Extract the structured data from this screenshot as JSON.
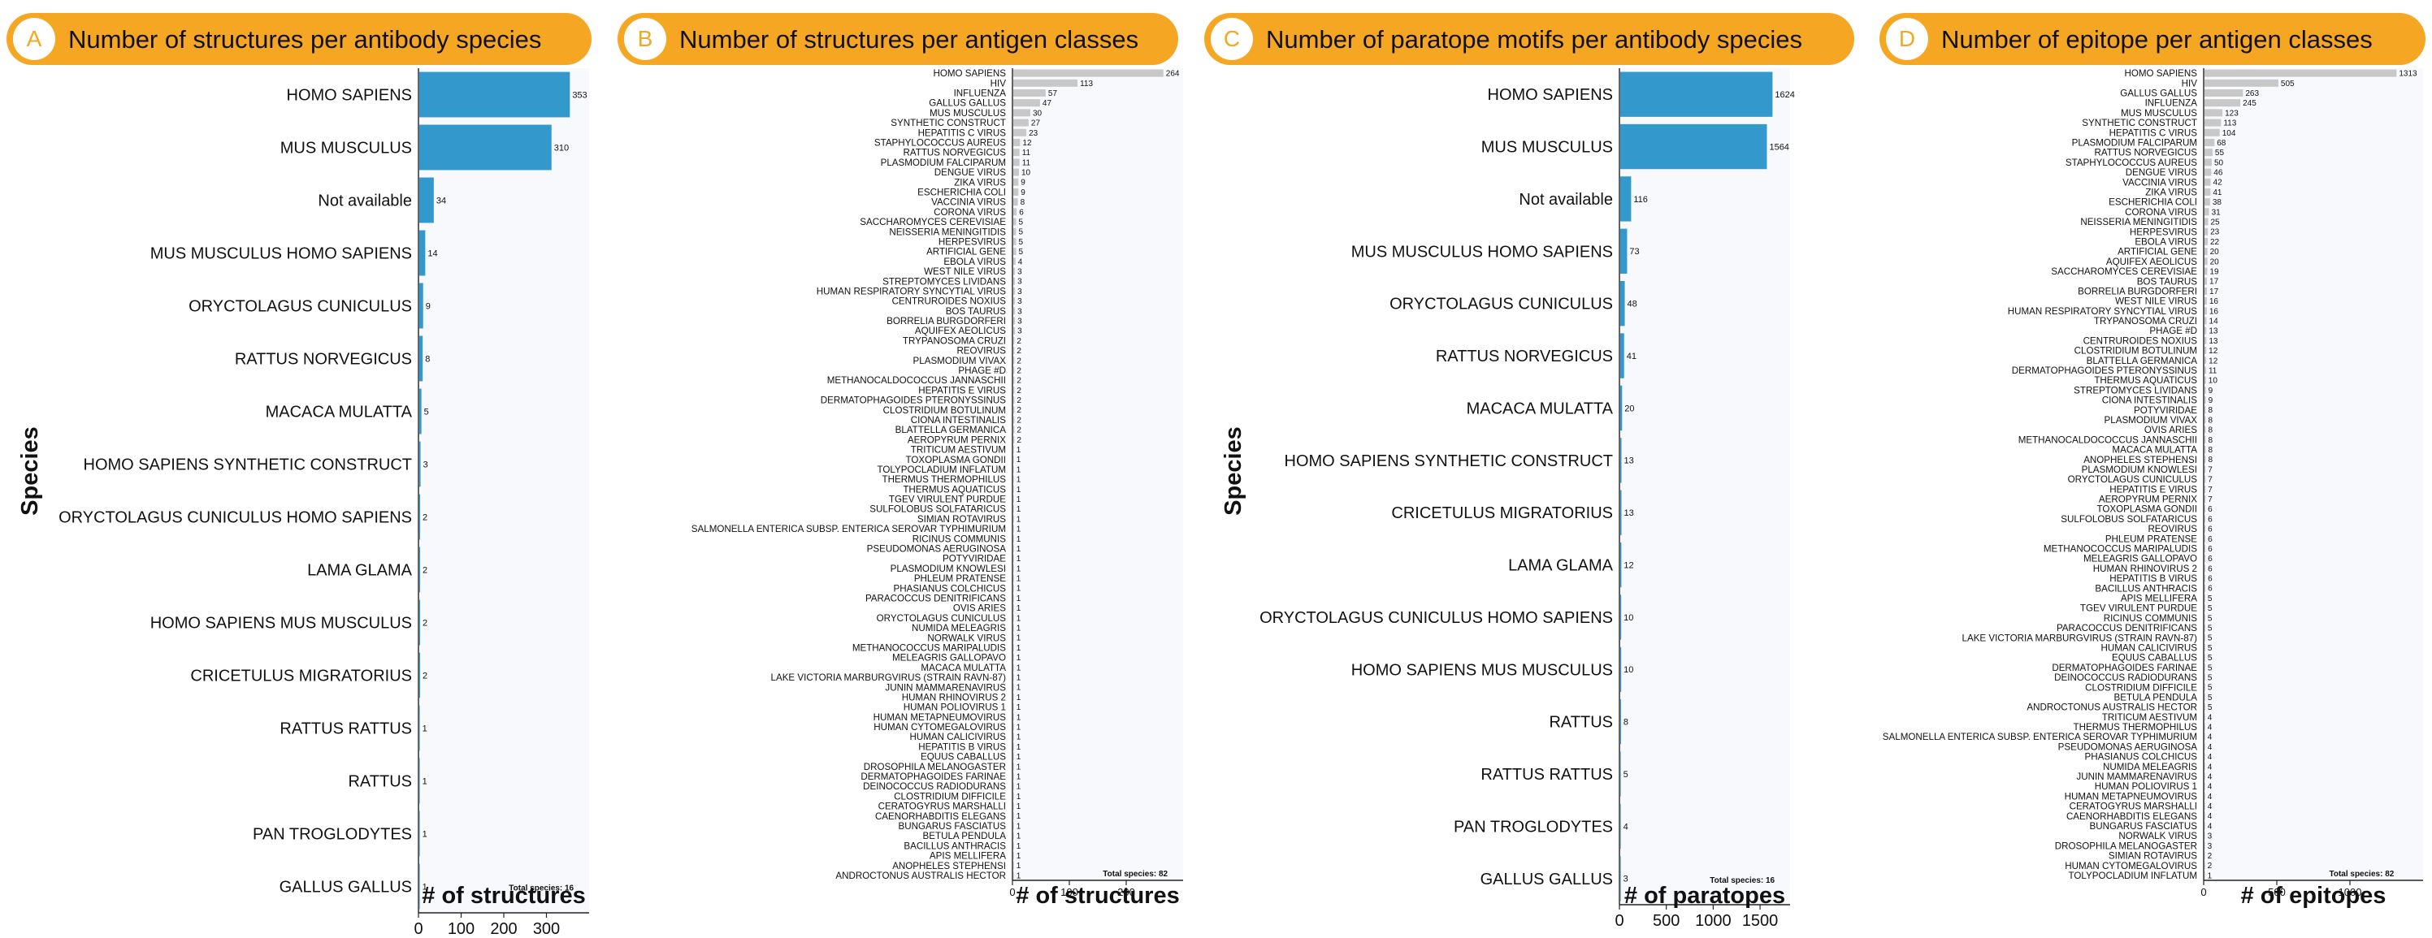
{
  "colors": {
    "header_bg": "#F5A623",
    "blue": "#3399CC",
    "gray": "#C8C8C8",
    "plot_bg": "#F7F9FC",
    "letter_fg": "#F5A623"
  },
  "panels": [
    {
      "letter": "A",
      "title": "Number of structures per antibody species",
      "ylabel": "Species",
      "xlabel": "# of structures",
      "note": "Total species: 16",
      "chart_data": {
        "type": "bar",
        "orientation": "horizontal",
        "color": "blue",
        "xlim": [
          0,
          400
        ],
        "xticks": [
          0,
          100,
          200,
          300
        ],
        "categories": [
          "HOMO SAPIENS",
          "MUS MUSCULUS",
          "Not available",
          "MUS MUSCULUS HOMO SAPIENS",
          "ORYCTOLAGUS CUNICULUS",
          "RATTUS NORVEGICUS",
          "MACACA MULATTA",
          "HOMO SAPIENS SYNTHETIC CONSTRUCT",
          "ORYCTOLAGUS CUNICULUS HOMO SAPIENS",
          "LAMA GLAMA",
          "HOMO SAPIENS MUS MUSCULUS",
          "CRICETULUS MIGRATORIUS",
          "RATTUS RATTUS",
          "RATTUS",
          "PAN TROGLODYTES",
          "GALLUS GALLUS"
        ],
        "values": [
          353,
          310,
          34,
          14,
          9,
          8,
          5,
          3,
          2,
          2,
          2,
          2,
          1,
          1,
          1,
          1
        ]
      }
    },
    {
      "letter": "B",
      "title": "Number of structures per antigen classes",
      "ylabel": "",
      "xlabel": "# of structures",
      "note": "Total species: 82",
      "chart_data": {
        "type": "bar",
        "orientation": "horizontal",
        "color": "gray",
        "xlim": [
          0,
          300
        ],
        "xticks": [
          0,
          100,
          200
        ],
        "categories": [
          "HOMO SAPIENS",
          "HIV",
          "INFLUENZA",
          "GALLUS GALLUS",
          "MUS MUSCULUS",
          "SYNTHETIC CONSTRUCT",
          "HEPATITIS C VIRUS",
          "STAPHYLOCOCCUS AUREUS",
          "RATTUS NORVEGICUS",
          "PLASMODIUM FALCIPARUM",
          "DENGUE VIRUS",
          "ZIKA VIRUS",
          "ESCHERICHIA COLI",
          "VACCINIA VIRUS",
          "CORONA VIRUS",
          "SACCHAROMYCES CEREVISIAE",
          "NEISSERIA MENINGITIDIS",
          "HERPESVIRUS",
          "ARTIFICIAL GENE",
          "EBOLA VIRUS",
          "WEST NILE VIRUS",
          "STREPTOMYCES LIVIDANS",
          "HUMAN RESPIRATORY SYNCYTIAL VIRUS",
          "CENTRUROIDES NOXIUS",
          "BOS TAURUS",
          "BORRELIA BURGDORFERI",
          "AQUIFEX AEOLICUS",
          "TRYPANOSOMA CRUZI",
          "REOVIRUS",
          "PLASMODIUM VIVAX",
          "PHAGE #D",
          "METHANOCALDOCOCCUS JANNASCHII",
          "HEPATITIS E VIRUS",
          "DERMATOPHAGOIDES PTERONYSSINUS",
          "CLOSTRIDIUM BOTULINUM",
          "CIONA INTESTINALIS",
          "BLATTELLA GERMANICA",
          "AEROPYRUM PERNIX",
          "TRITICUM AESTIVUM",
          "TOXOPLASMA GONDII",
          "TOLYPOCLADIUM INFLATUM",
          "THERMUS THERMOPHILUS",
          "THERMUS AQUATICUS",
          "TGEV VIRULENT PURDUE",
          "SULFOLOBUS SOLFATARICUS",
          "SIMIAN ROTAVIRUS",
          "SALMONELLA ENTERICA SUBSP. ENTERICA SEROVAR TYPHIMURIUM",
          "RICINUS COMMUNIS",
          "PSEUDOMONAS AERUGINOSA",
          "POTYVIRIDAE",
          "PLASMODIUM KNOWLESI",
          "PHLEUM PRATENSE",
          "PHASIANUS COLCHICUS",
          "PARACOCCUS DENITRIFICANS",
          "OVIS ARIES",
          "ORYCTOLAGUS CUNICULUS",
          "NUMIDA MELEAGRIS",
          "NORWALK VIRUS",
          "METHANOCOCCUS MARIPALUDIS",
          "MELEAGRIS GALLOPAVO",
          "MACACA MULATTA",
          "LAKE VICTORIA MARBURGVIRUS (STRAIN RAVN-87)",
          "JUNIN MAMMARENAVIRUS",
          "HUMAN RHINOVIRUS 2",
          "HUMAN POLIOVIRUS 1",
          "HUMAN METAPNEUMOVIRUS",
          "HUMAN CYTOMEGALOVIRUS",
          "HUMAN CALICIVIRUS",
          "HEPATITIS B VIRUS",
          "EQUUS CABALLUS",
          "DROSOPHILA MELANOGASTER",
          "DERMATOPHAGOIDES FARINAE",
          "DEINOCOCCUS RADIODURANS",
          "CLOSTRIDIUM DIFFICILE",
          "CERATOGYRUS MARSHALLI",
          "CAENORHABDITIS ELEGANS",
          "BUNGARUS FASCIATUS",
          "BETULA PENDULA",
          "BACILLUS ANTHRACIS",
          "APIS MELLIFERA",
          "ANOPHELES STEPHENSI",
          "ANDROCTONUS AUSTRALIS HECTOR"
        ],
        "values": [
          264,
          113,
          57,
          47,
          30,
          27,
          23,
          12,
          11,
          11,
          10,
          9,
          9,
          8,
          6,
          5,
          5,
          5,
          5,
          4,
          3,
          3,
          3,
          3,
          3,
          3,
          3,
          2,
          2,
          2,
          2,
          2,
          2,
          2,
          2,
          2,
          2,
          2,
          1,
          1,
          1,
          1,
          1,
          1,
          1,
          1,
          1,
          1,
          1,
          1,
          1,
          1,
          1,
          1,
          1,
          1,
          1,
          1,
          1,
          1,
          1,
          1,
          1,
          1,
          1,
          1,
          1,
          1,
          1,
          1,
          1,
          1,
          1,
          1,
          1,
          1,
          1,
          1,
          1,
          1,
          1,
          1
        ]
      }
    },
    {
      "letter": "C",
      "title": "Number of paratope motifs per antibody species",
      "ylabel": "Species",
      "xlabel": "# of paratopes",
      "note": "Total species: 16",
      "chart_data": {
        "type": "bar",
        "orientation": "horizontal",
        "color": "blue",
        "xlim": [
          0,
          1820
        ],
        "xticks": [
          0,
          500,
          1000,
          1500
        ],
        "categories": [
          "HOMO SAPIENS",
          "MUS MUSCULUS",
          "Not available",
          "MUS MUSCULUS HOMO SAPIENS",
          "ORYCTOLAGUS CUNICULUS",
          "RATTUS NORVEGICUS",
          "MACACA MULATTA",
          "HOMO SAPIENS SYNTHETIC CONSTRUCT",
          "CRICETULUS MIGRATORIUS",
          "LAMA GLAMA",
          "ORYCTOLAGUS CUNICULUS HOMO SAPIENS",
          "HOMO SAPIENS MUS MUSCULUS",
          "RATTUS",
          "RATTUS RATTUS",
          "PAN TROGLODYTES",
          "GALLUS GALLUS"
        ],
        "values": [
          1624,
          1564,
          116,
          73,
          48,
          41,
          20,
          13,
          13,
          12,
          10,
          10,
          8,
          5,
          4,
          3
        ]
      }
    },
    {
      "letter": "D",
      "title": "Number of epitope per antigen classes",
      "ylabel": "",
      "xlabel": "# of epitopes",
      "note": "Total species: 82",
      "chart_data": {
        "type": "bar",
        "orientation": "horizontal",
        "color": "gray",
        "xlim": [
          0,
          1500
        ],
        "xticks": [
          0,
          500,
          1000
        ],
        "categories": [
          "HOMO SAPIENS",
          "HIV",
          "GALLUS GALLUS",
          "INFLUENZA",
          "MUS MUSCULUS",
          "SYNTHETIC CONSTRUCT",
          "HEPATITIS C VIRUS",
          "PLASMODIUM FALCIPARUM",
          "RATTUS NORVEGICUS",
          "STAPHYLOCOCCUS AUREUS",
          "DENGUE VIRUS",
          "VACCINIA VIRUS",
          "ZIKA VIRUS",
          "ESCHERICHIA COLI",
          "CORONA VIRUS",
          "NEISSERIA MENINGITIDIS",
          "HERPESVIRUS",
          "EBOLA VIRUS",
          "ARTIFICIAL GENE",
          "AQUIFEX AEOLICUS",
          "SACCHAROMYCES CEREVISIAE",
          "BOS TAURUS",
          "BORRELIA BURGDORFERI",
          "WEST NILE VIRUS",
          "HUMAN RESPIRATORY SYNCYTIAL VIRUS",
          "TRYPANOSOMA CRUZI",
          "PHAGE #D",
          "CENTRUROIDES NOXIUS",
          "CLOSTRIDIUM BOTULINUM",
          "BLATTELLA GERMANICA",
          "DERMATOPHAGOIDES PTERONYSSINUS",
          "THERMUS AQUATICUS",
          "STREPTOMYCES LIVIDANS",
          "CIONA INTESTINALIS",
          "POTYVIRIDAE",
          "PLASMODIUM VIVAX",
          "OVIS ARIES",
          "METHANOCALDOCOCCUS JANNASCHII",
          "MACACA MULATTA",
          "ANOPHELES STEPHENSI",
          "PLASMODIUM KNOWLESI",
          "ORYCTOLAGUS CUNICULUS",
          "HEPATITIS E VIRUS",
          "AEROPYRUM PERNIX",
          "TOXOPLASMA GONDII",
          "SULFOLOBUS SOLFATARICUS",
          "REOVIRUS",
          "PHLEUM PRATENSE",
          "METHANOCOCCUS MARIPALUDIS",
          "MELEAGRIS GALLOPAVO",
          "HUMAN RHINOVIRUS 2",
          "HEPATITIS B VIRUS",
          "BACILLUS ANTHRACIS",
          "APIS MELLIFERA",
          "TGEV VIRULENT PURDUE",
          "RICINUS COMMUNIS",
          "PARACOCCUS DENITRIFICANS",
          "LAKE VICTORIA MARBURGVIRUS (STRAIN RAVN-87)",
          "HUMAN CALICIVIRUS",
          "EQUUS CABALLUS",
          "DERMATOPHAGOIDES FARINAE",
          "DEINOCOCCUS RADIODURANS",
          "CLOSTRIDIUM DIFFICILE",
          "BETULA PENDULA",
          "ANDROCTONUS AUSTRALIS HECTOR",
          "TRITICUM AESTIVUM",
          "THERMUS THERMOPHILUS",
          "SALMONELLA ENTERICA SUBSP. ENTERICA SEROVAR TYPHIMURIUM",
          "PSEUDOMONAS AERUGINOSA",
          "PHASIANUS COLCHICUS",
          "NUMIDA MELEAGRIS",
          "JUNIN MAMMARENAVIRUS",
          "HUMAN POLIOVIRUS 1",
          "HUMAN METAPNEUMOVIRUS",
          "CERATOGYRUS MARSHALLI",
          "CAENORHABDITIS ELEGANS",
          "BUNGARUS FASCIATUS",
          "NORWALK VIRUS",
          "DROSOPHILA MELANOGASTER",
          "SIMIAN ROTAVIRUS",
          "HUMAN CYTOMEGALOVIRUS",
          "TOLYPOCLADIUM INFLATUM"
        ],
        "values": [
          1313,
          505,
          263,
          245,
          123,
          113,
          104,
          68,
          55,
          50,
          46,
          42,
          41,
          38,
          31,
          25,
          23,
          22,
          20,
          20,
          19,
          17,
          17,
          16,
          16,
          14,
          13,
          13,
          12,
          12,
          11,
          10,
          9,
          9,
          8,
          8,
          8,
          8,
          8,
          8,
          7,
          7,
          7,
          7,
          6,
          6,
          6,
          6,
          6,
          6,
          6,
          6,
          6,
          5,
          5,
          5,
          5,
          5,
          5,
          5,
          5,
          5,
          5,
          5,
          5,
          4,
          4,
          4,
          4,
          4,
          4,
          4,
          4,
          4,
          4,
          4,
          4,
          3,
          3,
          2,
          2,
          1
        ]
      }
    }
  ]
}
